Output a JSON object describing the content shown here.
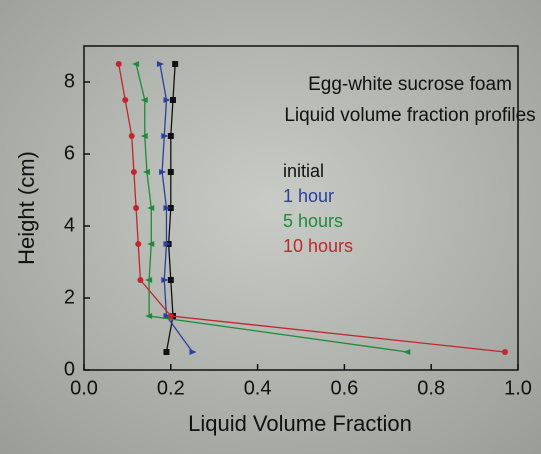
{
  "chart_data": {
    "type": "line",
    "title": "Egg-white sucrose foam",
    "subtitle": "Liquid volume fraction profiles",
    "x_label": "Liquid Volume Fraction",
    "y_label": "Height (cm)",
    "xlim": [
      0,
      1
    ],
    "ylim": [
      0,
      9
    ],
    "xticks": [
      {
        "value": 0,
        "label": "0.0"
      },
      {
        "value": 0.2,
        "label": "0.2"
      },
      {
        "value": 0.4,
        "label": "0.4"
      },
      {
        "value": 0.6,
        "label": "0.6"
      },
      {
        "value": 0.8,
        "label": "0.8"
      },
      {
        "value": 1,
        "label": "1.0"
      }
    ],
    "yticks": [
      0,
      2,
      4,
      6,
      8
    ],
    "series": [
      {
        "name": "initial",
        "color": "#111111",
        "marker": "square",
        "x": [
          0.19,
          0.205,
          0.2,
          0.195,
          0.2,
          0.2,
          0.2,
          0.205,
          0.21
        ],
        "values": [
          0.5,
          1.5,
          2.5,
          3.5,
          4.5,
          5.5,
          6.5,
          7.5,
          8.5
        ]
      },
      {
        "name": "1 hour",
        "color": "#2b3f9e",
        "marker": "triangle-right",
        "x": [
          0.25,
          0.19,
          0.185,
          0.19,
          0.19,
          0.18,
          0.185,
          0.19,
          0.175
        ],
        "values": [
          0.5,
          1.5,
          2.5,
          3.5,
          4.5,
          5.5,
          6.5,
          7.5,
          8.5
        ]
      },
      {
        "name": "5 hours",
        "color": "#1f8a3a",
        "marker": "triangle-left",
        "x": [
          0.745,
          0.15,
          0.15,
          0.155,
          0.155,
          0.145,
          0.14,
          0.14,
          0.12
        ],
        "values": [
          0.5,
          1.5,
          2.5,
          3.5,
          4.5,
          5.5,
          6.5,
          7.5,
          8.5
        ]
      },
      {
        "name": "10 hours",
        "color": "#c0262d",
        "marker": "circle",
        "x": [
          0.97,
          0.2,
          0.13,
          0.125,
          0.12,
          0.115,
          0.11,
          0.095,
          0.08
        ],
        "values": [
          0.5,
          1.5,
          2.5,
          3.5,
          4.5,
          5.5,
          6.5,
          7.5,
          8.5
        ]
      }
    ]
  }
}
